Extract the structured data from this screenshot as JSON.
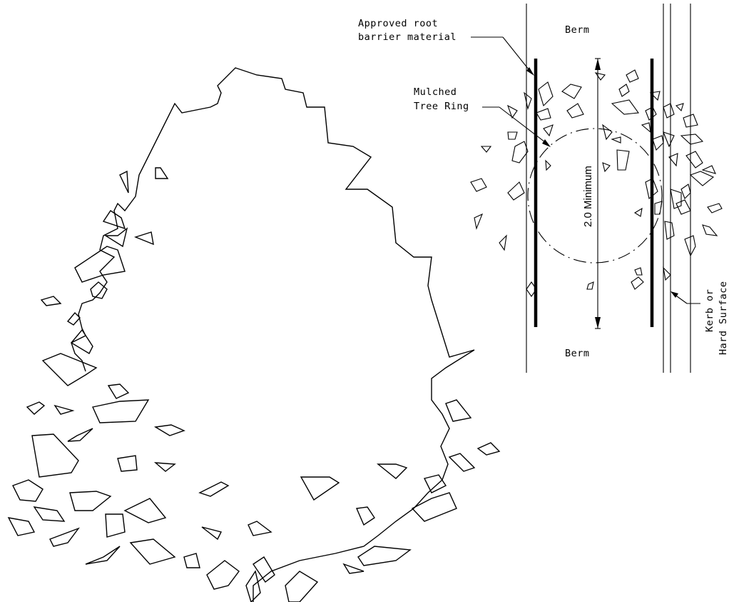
{
  "labels": {
    "berm_top": "Berm",
    "berm_bottom": "Berm",
    "root_barrier_line1": "Approved root",
    "root_barrier_line2": "barrier material",
    "tree_ring_line1": "Mulched",
    "tree_ring_line2": "Tree Ring",
    "dimension": "2.0 Minimum",
    "kerb_line1": "Kerb or",
    "kerb_line2": "Hard Surface"
  }
}
